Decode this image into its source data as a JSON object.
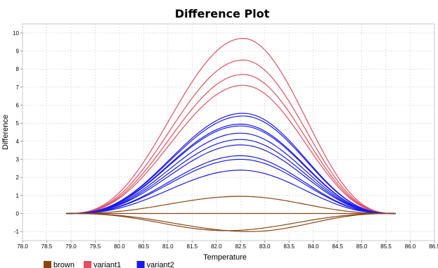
{
  "chart_data": {
    "type": "line",
    "title": "Difference Plot",
    "xlabel": "Temperature",
    "ylabel": "Difference",
    "xlim": [
      78.0,
      86.5
    ],
    "ylim": [
      -1.5,
      10.5
    ],
    "x_ticks": [
      "78.0",
      "78.5",
      "79.0",
      "79.5",
      "80.0",
      "80.5",
      "81.0",
      "81.5",
      "82.0",
      "82.5",
      "83.0",
      "83.5",
      "84.0",
      "84.5",
      "85.0",
      "85.5",
      "86.0",
      "86.5"
    ],
    "y_ticks": [
      "-1",
      "0",
      "1",
      "2",
      "3",
      "4",
      "5",
      "6",
      "7",
      "8",
      "9",
      "10"
    ],
    "grid": true,
    "legend_position": "bottom-left",
    "legend": [
      {
        "name": "brown",
        "color": "#8b4513"
      },
      {
        "name": "variant1",
        "color": "#e05060"
      },
      {
        "name": "variant2",
        "color": "#1a1aee"
      }
    ],
    "x_start": 78.9,
    "x_end": 85.7,
    "series": [
      {
        "name": "variant1",
        "color": "#e05060",
        "peak_x": 82.55,
        "peak_y": 9.7
      },
      {
        "name": "variant1",
        "color": "#e05060",
        "peak_x": 82.55,
        "peak_y": 8.5
      },
      {
        "name": "variant1",
        "color": "#e05060",
        "peak_x": 82.55,
        "peak_y": 7.7
      },
      {
        "name": "variant1",
        "color": "#e05060",
        "peak_x": 82.55,
        "peak_y": 7.1
      },
      {
        "name": "variant2",
        "color": "#1a1aee",
        "peak_x": 82.55,
        "peak_y": 5.55
      },
      {
        "name": "variant2",
        "color": "#1a1aee",
        "peak_x": 82.55,
        "peak_y": 5.4
      },
      {
        "name": "variant2",
        "color": "#1a1aee",
        "peak_x": 82.5,
        "peak_y": 4.95
      },
      {
        "name": "variant2",
        "color": "#1a1aee",
        "peak_x": 82.5,
        "peak_y": 4.85
      },
      {
        "name": "variant2",
        "color": "#1a1aee",
        "peak_x": 82.5,
        "peak_y": 4.45
      },
      {
        "name": "variant2",
        "color": "#1a1aee",
        "peak_x": 82.5,
        "peak_y": 4.1
      },
      {
        "name": "variant2",
        "color": "#1a1aee",
        "peak_x": 82.5,
        "peak_y": 3.8
      },
      {
        "name": "variant2",
        "color": "#1a1aee",
        "peak_x": 82.5,
        "peak_y": 3.2
      },
      {
        "name": "variant2",
        "color": "#1a1aee",
        "peak_x": 82.5,
        "peak_y": 3.0
      },
      {
        "name": "variant2",
        "color": "#1a1aee",
        "peak_x": 82.5,
        "peak_y": 2.4
      },
      {
        "name": "brown",
        "color": "#8b4513",
        "peak_x": 82.5,
        "peak_y": 0.95
      },
      {
        "name": "brown",
        "color": "#8b4513",
        "peak_x": 82.5,
        "peak_y": 0.0
      },
      {
        "name": "brown",
        "color": "#8b4513",
        "peak_x": 82.2,
        "peak_y": -0.95
      },
      {
        "name": "brown",
        "color": "#8b4513",
        "peak_x": 82.7,
        "peak_y": -1.0
      }
    ]
  }
}
